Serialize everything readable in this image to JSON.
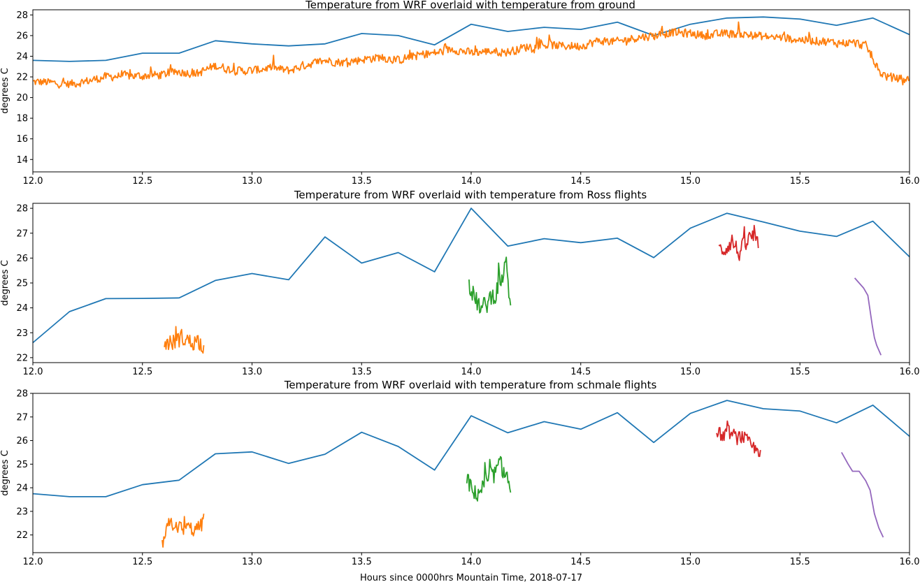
{
  "figure": {
    "xlabel": "Hours since 0000hrs Mountain Time, 2018-07-17"
  },
  "chart_data": [
    {
      "type": "line",
      "title": "Temperature from WRF overlaid with temperature from ground",
      "xlabel": "",
      "ylabel": "degrees C",
      "xlim": [
        12.0,
        16.0
      ],
      "ylim": [
        12.8,
        28.5
      ],
      "xticks": [
        "12.0",
        "12.5",
        "13.0",
        "13.5",
        "14.0",
        "14.5",
        "15.0",
        "15.5",
        "16.0"
      ],
      "yticks": [
        "14",
        "16",
        "18",
        "20",
        "22",
        "24",
        "26",
        "28"
      ],
      "grid": false,
      "series": [
        {
          "color": "#1f77b4",
          "x": [
            12.0,
            12.167,
            12.333,
            12.5,
            12.667,
            12.833,
            13.0,
            13.167,
            13.333,
            13.5,
            13.667,
            13.833,
            14.0,
            14.167,
            14.333,
            14.5,
            14.667,
            14.833,
            15.0,
            15.167,
            15.333,
            15.5,
            15.667,
            15.833,
            16.0
          ],
          "y": [
            23.6,
            23.5,
            23.6,
            24.3,
            24.3,
            25.5,
            25.2,
            25.0,
            25.2,
            26.2,
            26.0,
            25.1,
            27.1,
            26.4,
            26.8,
            26.6,
            27.3,
            26.0,
            27.1,
            27.7,
            27.8,
            27.6,
            27.0,
            27.7,
            26.1
          ]
        },
        {
          "color": "#ff7f0e",
          "noisy": true,
          "x": [
            12.0,
            12.05,
            12.1,
            12.167,
            12.25,
            12.333,
            12.417,
            12.5,
            12.583,
            12.667,
            12.75,
            12.833,
            12.917,
            13.0,
            13.083,
            13.167,
            13.25,
            13.333,
            13.417,
            13.5,
            13.583,
            13.667,
            13.75,
            13.833,
            13.917,
            14.0,
            14.083,
            14.167,
            14.25,
            14.333,
            14.417,
            14.5,
            14.583,
            14.667,
            14.75,
            14.833,
            14.917,
            15.0,
            15.083,
            15.167,
            15.25,
            15.333,
            15.417,
            15.5,
            15.583,
            15.667,
            15.75,
            15.8,
            15.83,
            15.86,
            15.9,
            16.0
          ],
          "y": [
            21.5,
            21.5,
            21.4,
            21.3,
            21.6,
            22.0,
            22.1,
            22.1,
            22.2,
            22.5,
            22.3,
            23.1,
            22.6,
            22.6,
            22.9,
            22.6,
            23.2,
            23.6,
            23.4,
            23.7,
            23.9,
            23.6,
            24.1,
            24.3,
            24.7,
            24.3,
            24.5,
            24.4,
            24.9,
            25.1,
            25.0,
            25.0,
            25.5,
            25.4,
            25.8,
            26.0,
            26.3,
            26.2,
            26.0,
            26.2,
            26.1,
            25.9,
            25.8,
            25.6,
            25.5,
            25.3,
            25.3,
            25.0,
            23.9,
            22.5,
            22.0,
            21.7
          ],
          "noise_amplitude": 0.8
        }
      ]
    },
    {
      "type": "line",
      "title": "Temperature from WRF overlaid with temperature from Ross flights",
      "xlabel": "",
      "ylabel": "degrees C",
      "xlim": [
        12.0,
        16.0
      ],
      "ylim": [
        21.8,
        28.2
      ],
      "xticks": [
        "12.0",
        "12.5",
        "13.0",
        "13.5",
        "14.0",
        "14.5",
        "15.0",
        "15.5",
        "16.0"
      ],
      "yticks": [
        "22",
        "23",
        "24",
        "25",
        "26",
        "27",
        "28"
      ],
      "grid": false,
      "series": [
        {
          "color": "#1f77b4",
          "x": [
            12.0,
            12.167,
            12.333,
            12.5,
            12.667,
            12.833,
            13.0,
            13.167,
            13.333,
            13.5,
            13.667,
            13.833,
            14.0,
            14.167,
            14.333,
            14.5,
            14.667,
            14.833,
            15.0,
            15.167,
            15.333,
            15.5,
            15.667,
            15.833,
            16.0
          ],
          "y": [
            22.6,
            23.85,
            24.37,
            24.38,
            24.4,
            25.1,
            25.38,
            25.13,
            26.85,
            25.8,
            26.22,
            25.45,
            28.0,
            26.48,
            26.78,
            26.62,
            26.8,
            26.02,
            27.2,
            27.8,
            27.45,
            27.08,
            26.87,
            27.48,
            26.05
          ]
        },
        {
          "color": "#ff7f0e",
          "noisy": true,
          "x": [
            12.6,
            12.63,
            12.66,
            12.69,
            12.72,
            12.75,
            12.78
          ],
          "y": [
            22.6,
            22.6,
            22.7,
            22.8,
            22.6,
            22.7,
            22.5
          ],
          "noise_amplitude": 0.7
        },
        {
          "color": "#2ca02c",
          "noisy": true,
          "x": [
            13.99,
            14.02,
            14.05,
            14.08,
            14.11,
            14.14,
            14.16,
            14.18
          ],
          "y": [
            25.0,
            24.3,
            23.9,
            24.3,
            24.6,
            25.2,
            25.7,
            24.1
          ],
          "noise_amplitude": 0.8
        },
        {
          "color": "#d62728",
          "noisy": true,
          "x": [
            15.13,
            15.16,
            15.19,
            15.22,
            15.25,
            15.28,
            15.31
          ],
          "y": [
            26.3,
            26.4,
            26.7,
            26.2,
            26.5,
            26.9,
            26.4
          ],
          "noise_amplitude": 0.7
        },
        {
          "color": "#9467bd",
          "x": [
            15.75,
            15.77,
            15.79,
            15.81,
            15.83,
            15.84,
            15.85,
            15.87
          ],
          "y": [
            25.2,
            25.0,
            24.8,
            24.5,
            23.3,
            22.8,
            22.5,
            22.1
          ]
        }
      ]
    },
    {
      "type": "line",
      "title": "Temperature from WRF overlaid with temperature from schmale flights",
      "xlabel": "Hours since 0000hrs Mountain Time, 2018-07-17",
      "ylabel": "degrees C",
      "xlim": [
        12.0,
        16.0
      ],
      "ylim": [
        21.25,
        28.0
      ],
      "xticks": [
        "12.0",
        "12.5",
        "13.0",
        "13.5",
        "14.0",
        "14.5",
        "15.0",
        "15.5",
        "16.0"
      ],
      "yticks": [
        "22",
        "23",
        "24",
        "25",
        "26",
        "27",
        "28"
      ],
      "grid": false,
      "series": [
        {
          "color": "#1f77b4",
          "x": [
            12.0,
            12.167,
            12.333,
            12.5,
            12.667,
            12.833,
            13.0,
            13.167,
            13.333,
            13.5,
            13.667,
            13.833,
            14.0,
            14.167,
            14.333,
            14.5,
            14.667,
            14.833,
            15.0,
            15.167,
            15.333,
            15.5,
            15.667,
            15.833,
            16.0
          ],
          "y": [
            23.75,
            23.62,
            23.62,
            24.13,
            24.32,
            25.44,
            25.52,
            25.03,
            25.42,
            26.35,
            25.75,
            24.75,
            27.05,
            26.33,
            26.8,
            26.48,
            27.18,
            25.92,
            27.15,
            27.7,
            27.35,
            27.25,
            26.75,
            27.5,
            26.18
          ]
        },
        {
          "color": "#ff7f0e",
          "noisy": true,
          "x": [
            12.59,
            12.62,
            12.65,
            12.68,
            12.71,
            12.74,
            12.77,
            12.78
          ],
          "y": [
            21.6,
            22.4,
            22.5,
            22.2,
            22.3,
            22.2,
            22.4,
            22.9
          ],
          "noise_amplitude": 0.6
        },
        {
          "color": "#2ca02c",
          "noisy": true,
          "x": [
            13.98,
            14.01,
            14.04,
            14.07,
            14.1,
            14.13,
            14.16,
            14.18
          ],
          "y": [
            24.4,
            23.7,
            23.9,
            24.2,
            24.5,
            24.9,
            24.6,
            23.8
          ],
          "noise_amplitude": 0.8
        },
        {
          "color": "#d62728",
          "noisy": true,
          "x": [
            15.12,
            15.15,
            15.18,
            15.21,
            15.24,
            15.27,
            15.3,
            15.32
          ],
          "y": [
            26.3,
            26.2,
            26.3,
            26.1,
            26.2,
            25.8,
            25.6,
            25.6
          ],
          "noise_amplitude": 0.6
        },
        {
          "color": "#9467bd",
          "x": [
            15.69,
            15.72,
            15.74,
            15.77,
            15.8,
            15.82,
            15.84,
            15.86,
            15.88
          ],
          "y": [
            25.5,
            25.0,
            24.7,
            24.7,
            24.3,
            23.9,
            22.9,
            22.3,
            21.9
          ]
        }
      ]
    }
  ]
}
